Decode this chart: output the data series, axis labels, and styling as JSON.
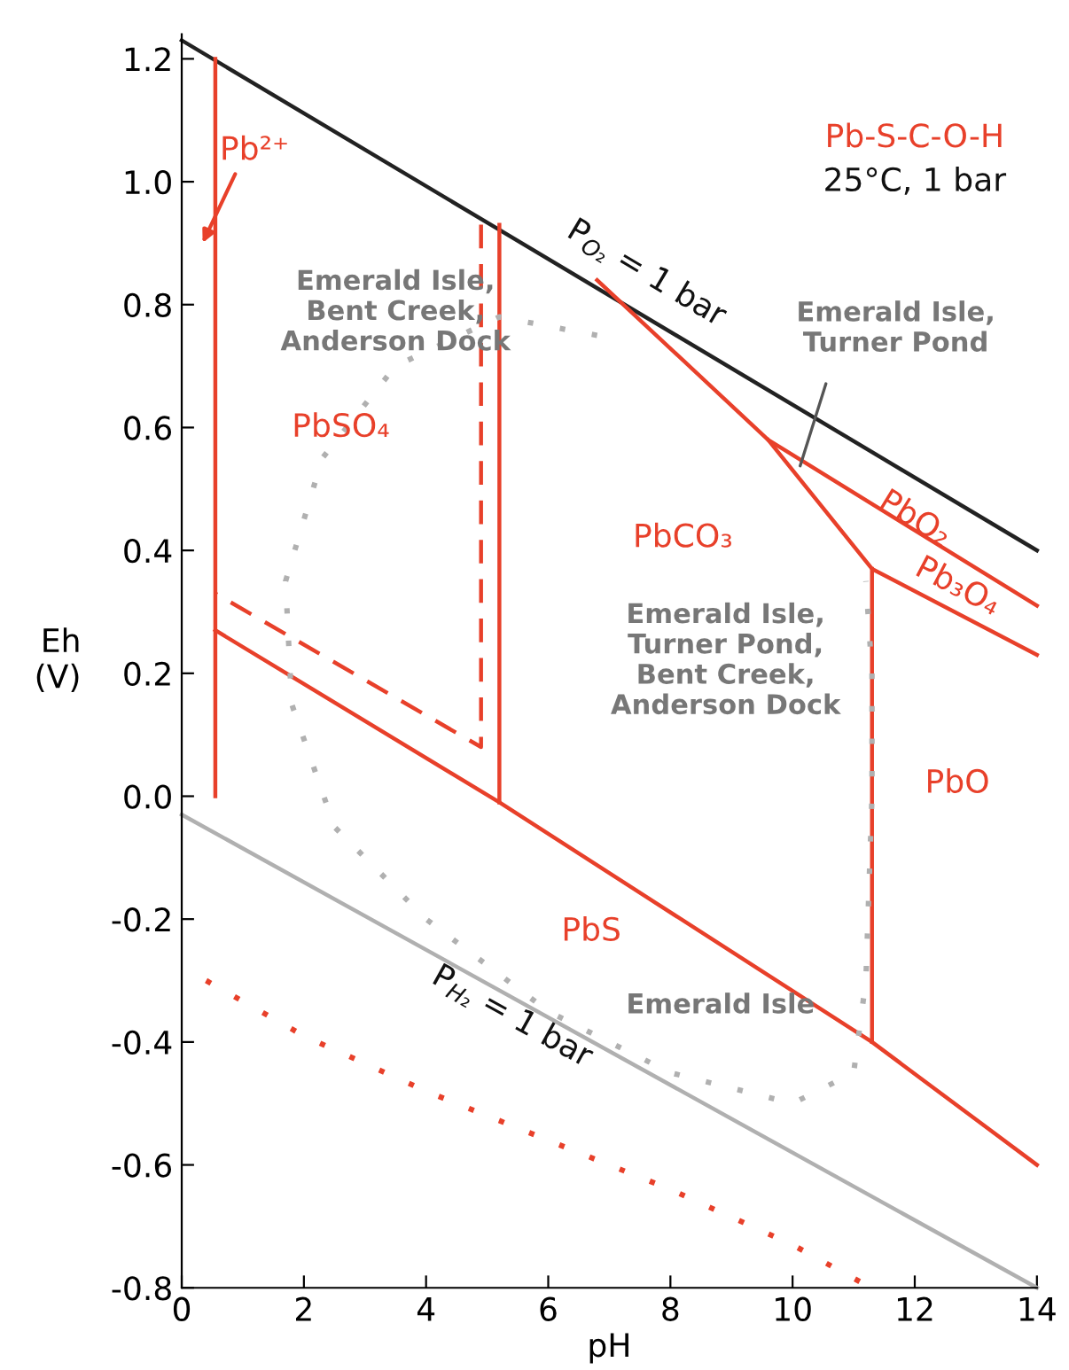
{
  "chart_data": {
    "type": "line",
    "xlabel": "pH",
    "ylabel": "Eh\n(V)",
    "xlim": [
      0,
      14
    ],
    "ylim": [
      -0.8,
      1.24
    ],
    "xticks": [
      0,
      2,
      4,
      6,
      8,
      10,
      12,
      14
    ],
    "yticks": [
      -0.8,
      -0.6,
      -0.4,
      -0.2,
      {
        "value": 0,
        "label": "0.0"
      },
      0.2,
      0.4,
      0.6,
      0.8,
      {
        "value": 1,
        "label": "1.0"
      },
      1.2
    ],
    "grid": false,
    "legend": false,
    "marker": "none",
    "series": [
      {
        "color": "#222222",
        "x": [
          0,
          14
        ],
        "values": [
          1.23,
          0.4
        ]
      },
      {
        "color": "#b0b0b0",
        "x": [
          0,
          14
        ],
        "values": [
          -0.03,
          -0.8
        ]
      },
      {
        "color": "#e8402a",
        "x": [
          0.55,
          0.55
        ],
        "values": [
          1.2,
          0.0
        ]
      },
      {
        "color": "#e8402a",
        "x": [
          0.55,
          5.2,
          11.3,
          14
        ],
        "values": [
          0.27,
          -0.01,
          -0.4,
          -0.6
        ]
      },
      {
        "color": "#e8402a",
        "x": [
          5.2,
          5.2
        ],
        "values": [
          0.93,
          -0.01
        ]
      },
      {
        "color": "#e8402a",
        "x": [
          6.8,
          9.6,
          14
        ],
        "values": [
          0.84,
          0.58,
          0.31
        ]
      },
      {
        "color": "#e8402a",
        "x": [
          9.6,
          11.3,
          14
        ],
        "values": [
          0.58,
          0.37,
          0.23
        ]
      },
      {
        "color": "#e8402a",
        "x": [
          11.3,
          11.3
        ],
        "values": [
          0.37,
          -0.4
        ]
      },
      {
        "color": "#e8402a",
        "line_style": "dashed",
        "x": [
          4.9,
          4.9,
          0.55
        ],
        "values": [
          0.93,
          0.08,
          0.33
        ]
      },
      {
        "color": "#b0b0b0",
        "line_style": "dotted",
        "x": [
          6.8,
          5.2,
          3.5,
          2.3,
          1.7,
          1.8,
          2.5,
          4.0,
          6.0,
          8.0,
          10.0,
          11.0,
          11.2,
          11.3,
          11.3,
          11.2
        ],
        "values": [
          0.75,
          0.78,
          0.7,
          0.55,
          0.35,
          0.15,
          -0.05,
          -0.2,
          -0.35,
          -0.45,
          -0.5,
          -0.45,
          -0.3,
          0.0,
          0.2,
          0.35
        ]
      },
      {
        "color": "#e8402a",
        "line_style": "dotted",
        "x": [
          0.4,
          2,
          4,
          6,
          8,
          10,
          11.1
        ],
        "values": [
          -0.3,
          -0.39,
          -0.48,
          -0.56,
          -0.64,
          -0.73,
          -0.79
        ]
      }
    ],
    "annotations": [
      "Pb-S-C-O-H",
      "25°C, 1 bar",
      "Pb²⁺",
      "PbSO₄",
      "PbCO₃",
      "PbO₂",
      "Pb₃O₄",
      "PbO",
      "PbS",
      "Emerald Isle,\nBent Creek,\nAnderson Dock",
      {
        "text": "Emerald Isle,\nTurner Pond",
        "x": 10.1,
        "y": 0.53
      },
      "Emerald Isle,\nTurner Pond,\nBent Creek,\nAnderson Dock",
      "Emerald Isle",
      "P$_{O₂}$ = 1 bar",
      "P$_{H₂}$ = 1 bar"
    ]
  }
}
